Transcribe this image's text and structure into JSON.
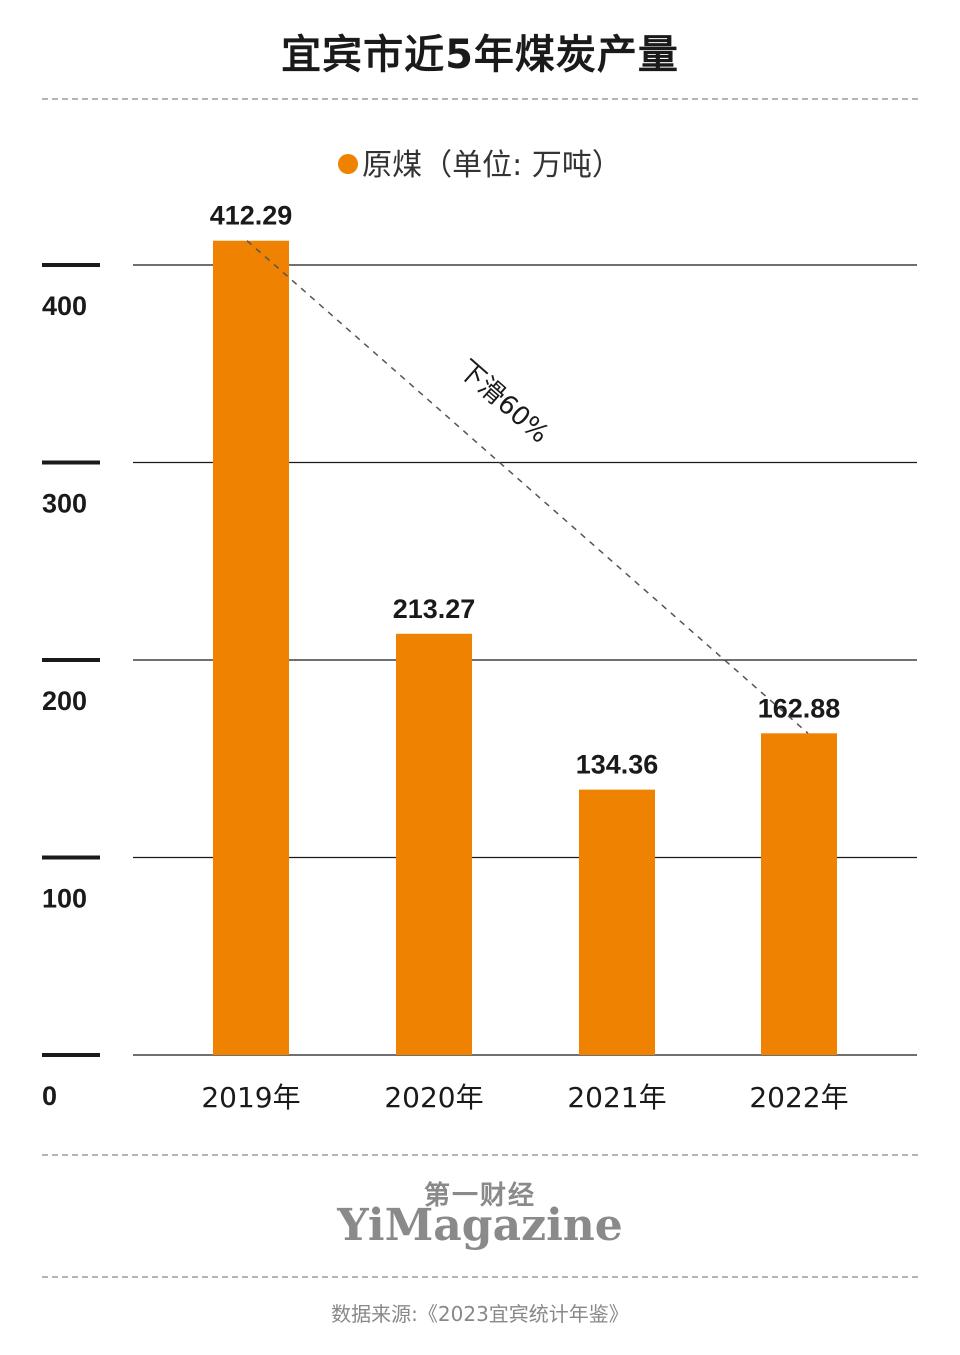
{
  "title": "宜宾市近5年煤炭产量",
  "legend_label": "原煤（单位: 万吨）",
  "annotation": "下滑60%",
  "brand_cn": "第一财经",
  "brand_en": "YiMagazine",
  "source": "数据来源:《2023宜宾统计年鉴》",
  "colors": {
    "bar": "#ef8200",
    "grid": "#1a1a1a",
    "text": "#1a1a1a",
    "muted": "#8a8a8a"
  },
  "chart_data": {
    "type": "bar",
    "title": "宜宾市近5年煤炭产量",
    "categories": [
      "2019年",
      "2020年",
      "2021年",
      "2022年"
    ],
    "series": [
      {
        "name": "原煤（单位: 万吨）",
        "values": [
          412.29,
          213.27,
          134.36,
          162.88
        ]
      }
    ],
    "data_labels": [
      "412.29",
      "213.27",
      "134.36",
      "162.88"
    ],
    "yticks": [
      "0",
      "100",
      "200",
      "300",
      "400"
    ],
    "ylim": [
      0,
      400
    ],
    "grid": true,
    "legend": "top-center",
    "annotations": [
      {
        "text": "下滑60%",
        "from": "2019年",
        "to": "2022年",
        "style": "dashed"
      }
    ]
  }
}
